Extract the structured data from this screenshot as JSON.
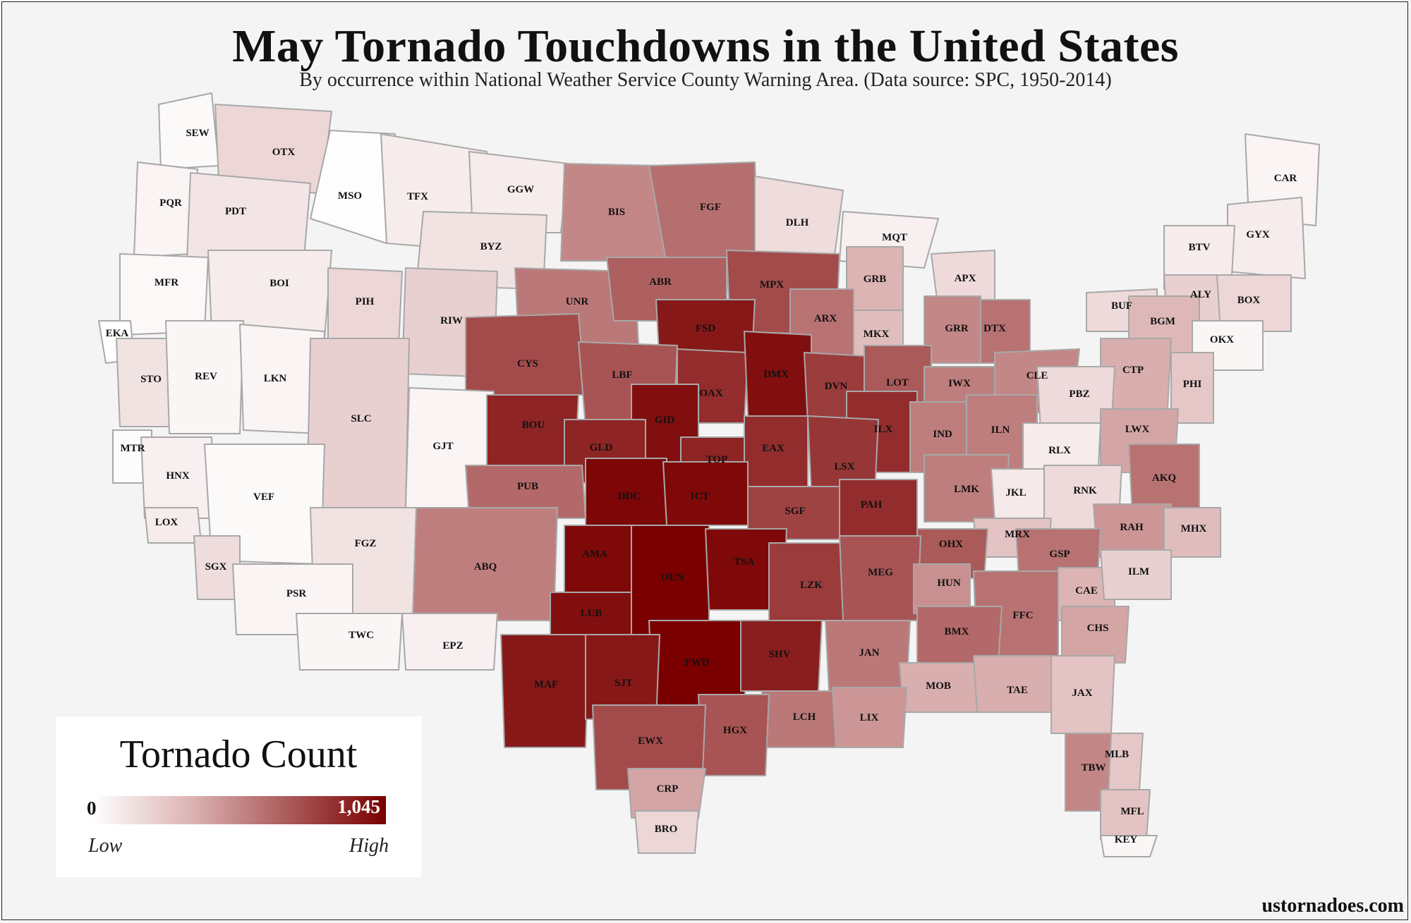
{
  "title": "May Tornado Touchdowns in the United States",
  "subtitle": "By occurrence within National Weather Service County Warning Area. (Data source: SPC, 1950-2014)",
  "credit": "ustornadoes.com",
  "legend": {
    "title": "Tornado Count",
    "min_label": "0",
    "max_label": "1,045",
    "low_label": "Low",
    "high_label": "High",
    "min_value": 0,
    "max_value": 1045,
    "color_low": "#ffffff",
    "color_high": "#7a0000"
  },
  "colors": {
    "background": "#f4f4f4",
    "border": "#a8a8a8"
  },
  "chart_data": {
    "type": "choropleth",
    "value_scale": "relative intensity 0-1 (0 = 0 tornadoes, 1 = 1,045)",
    "regions": [
      {
        "code": "SEW",
        "intensity": 0.03
      },
      {
        "code": "OTX",
        "intensity": 0.22
      },
      {
        "code": "MSO",
        "intensity": 0.01
      },
      {
        "code": "TFX",
        "intensity": 0.1
      },
      {
        "code": "GGW",
        "intensity": 0.1
      },
      {
        "code": "PQR",
        "intensity": 0.06
      },
      {
        "code": "PDT",
        "intensity": 0.14
      },
      {
        "code": "BIS",
        "intensity": 0.55
      },
      {
        "code": "FGF",
        "intensity": 0.63
      },
      {
        "code": "DLH",
        "intensity": 0.18
      },
      {
        "code": "MQT",
        "intensity": 0.08
      },
      {
        "code": "CAR",
        "intensity": 0.06
      },
      {
        "code": "GYX",
        "intensity": 0.1
      },
      {
        "code": "BTV",
        "intensity": 0.1
      },
      {
        "code": "MFR",
        "intensity": 0.04
      },
      {
        "code": "BOI",
        "intensity": 0.1
      },
      {
        "code": "BYZ",
        "intensity": 0.15
      },
      {
        "code": "UNR",
        "intensity": 0.6
      },
      {
        "code": "ABR",
        "intensity": 0.68
      },
      {
        "code": "MPX",
        "intensity": 0.75
      },
      {
        "code": "GRB",
        "intensity": 0.4
      },
      {
        "code": "APX",
        "intensity": 0.2
      },
      {
        "code": "ALY",
        "intensity": 0.25
      },
      {
        "code": "BOX",
        "intensity": 0.22
      },
      {
        "code": "PIH",
        "intensity": 0.22
      },
      {
        "code": "RIW",
        "intensity": 0.25
      },
      {
        "code": "FSD",
        "intensity": 0.92
      },
      {
        "code": "ARX",
        "intensity": 0.62
      },
      {
        "code": "MKX",
        "intensity": 0.35
      },
      {
        "code": "GRR",
        "intensity": 0.55
      },
      {
        "code": "DTX",
        "intensity": 0.62
      },
      {
        "code": "BUF",
        "intensity": 0.2
      },
      {
        "code": "BGM",
        "intensity": 0.38
      },
      {
        "code": "OKX",
        "intensity": 0.05
      },
      {
        "code": "EKA",
        "intensity": 0.0
      },
      {
        "code": "STO",
        "intensity": 0.15
      },
      {
        "code": "REV",
        "intensity": 0.05
      },
      {
        "code": "LKN",
        "intensity": 0.06
      },
      {
        "code": "CYS",
        "intensity": 0.75
      },
      {
        "code": "LBF",
        "intensity": 0.72
      },
      {
        "code": "OAX",
        "intensity": 0.85
      },
      {
        "code": "DMX",
        "intensity": 0.95
      },
      {
        "code": "DVN",
        "intensity": 0.8
      },
      {
        "code": "LOT",
        "intensity": 0.7
      },
      {
        "code": "IWX",
        "intensity": 0.58
      },
      {
        "code": "CLE",
        "intensity": 0.55
      },
      {
        "code": "CTP",
        "intensity": 0.42
      },
      {
        "code": "PBZ",
        "intensity": 0.2
      },
      {
        "code": "PHI",
        "intensity": 0.3
      },
      {
        "code": "SLC",
        "intensity": 0.25
      },
      {
        "code": "GJT",
        "intensity": 0.06
      },
      {
        "code": "BOU",
        "intensity": 0.88
      },
      {
        "code": "GID",
        "intensity": 0.95
      },
      {
        "code": "GLD",
        "intensity": 0.88
      },
      {
        "code": "ILX",
        "intensity": 0.85
      },
      {
        "code": "IND",
        "intensity": 0.58
      },
      {
        "code": "ILN",
        "intensity": 0.58
      },
      {
        "code": "LWX",
        "intensity": 0.45
      },
      {
        "code": "RLX",
        "intensity": 0.1
      },
      {
        "code": "MTR",
        "intensity": 0.02
      },
      {
        "code": "HNX",
        "intensity": 0.08
      },
      {
        "code": "VEF",
        "intensity": 0.03
      },
      {
        "code": "PUB",
        "intensity": 0.65
      },
      {
        "code": "TOP",
        "intensity": 0.88
      },
      {
        "code": "EAX",
        "intensity": 0.85
      },
      {
        "code": "LSX",
        "intensity": 0.82
      },
      {
        "code": "AKQ",
        "intensity": 0.62
      },
      {
        "code": "DDC",
        "intensity": 0.98
      },
      {
        "code": "ICT",
        "intensity": 0.97
      },
      {
        "code": "SGF",
        "intensity": 0.78
      },
      {
        "code": "PAH",
        "intensity": 0.85
      },
      {
        "code": "LMK",
        "intensity": 0.58
      },
      {
        "code": "JKL",
        "intensity": 0.12
      },
      {
        "code": "RNK",
        "intensity": 0.2
      },
      {
        "code": "LOX",
        "intensity": 0.1
      },
      {
        "code": "SGX",
        "intensity": 0.18
      },
      {
        "code": "RAH",
        "intensity": 0.5
      },
      {
        "code": "MHX",
        "intensity": 0.35
      },
      {
        "code": "MRX",
        "intensity": 0.32
      },
      {
        "code": "GSP",
        "intensity": 0.62
      },
      {
        "code": "OHX",
        "intensity": 0.7
      },
      {
        "code": "AMA",
        "intensity": 0.97
      },
      {
        "code": "OUN",
        "intensity": 1.0
      },
      {
        "code": "TSA",
        "intensity": 0.97
      },
      {
        "code": "LZK",
        "intensity": 0.8
      },
      {
        "code": "MEG",
        "intensity": 0.72
      },
      {
        "code": "ABQ",
        "intensity": 0.58
      },
      {
        "code": "FGZ",
        "intensity": 0.15
      },
      {
        "code": "HUN",
        "intensity": 0.52
      },
      {
        "code": "CAE",
        "intensity": 0.4
      },
      {
        "code": "ILM",
        "intensity": 0.25
      },
      {
        "code": "PSR",
        "intensity": 0.06
      },
      {
        "code": "LUB",
        "intensity": 0.95
      },
      {
        "code": "FFC",
        "intensity": 0.62
      },
      {
        "code": "BMX",
        "intensity": 0.65
      },
      {
        "code": "CHS",
        "intensity": 0.45
      },
      {
        "code": "TWC",
        "intensity": 0.05
      },
      {
        "code": "EPZ",
        "intensity": 0.08
      },
      {
        "code": "FWD",
        "intensity": 1.0
      },
      {
        "code": "SHV",
        "intensity": 0.9
      },
      {
        "code": "JAN",
        "intensity": 0.6
      },
      {
        "code": "MAF",
        "intensity": 0.92
      },
      {
        "code": "SJT",
        "intensity": 0.92
      },
      {
        "code": "MOB",
        "intensity": 0.42
      },
      {
        "code": "TAE",
        "intensity": 0.42
      },
      {
        "code": "JAX",
        "intensity": 0.32
      },
      {
        "code": "LCH",
        "intensity": 0.6
      },
      {
        "code": "LIX",
        "intensity": 0.5
      },
      {
        "code": "HGX",
        "intensity": 0.72
      },
      {
        "code": "EWX",
        "intensity": 0.75
      },
      {
        "code": "MLB",
        "intensity": 0.3
      },
      {
        "code": "TBW",
        "intensity": 0.55
      },
      {
        "code": "CRP",
        "intensity": 0.45
      },
      {
        "code": "BRO",
        "intensity": 0.22
      },
      {
        "code": "MFL",
        "intensity": 0.32
      },
      {
        "code": "KEY",
        "intensity": 0.05
      }
    ]
  }
}
